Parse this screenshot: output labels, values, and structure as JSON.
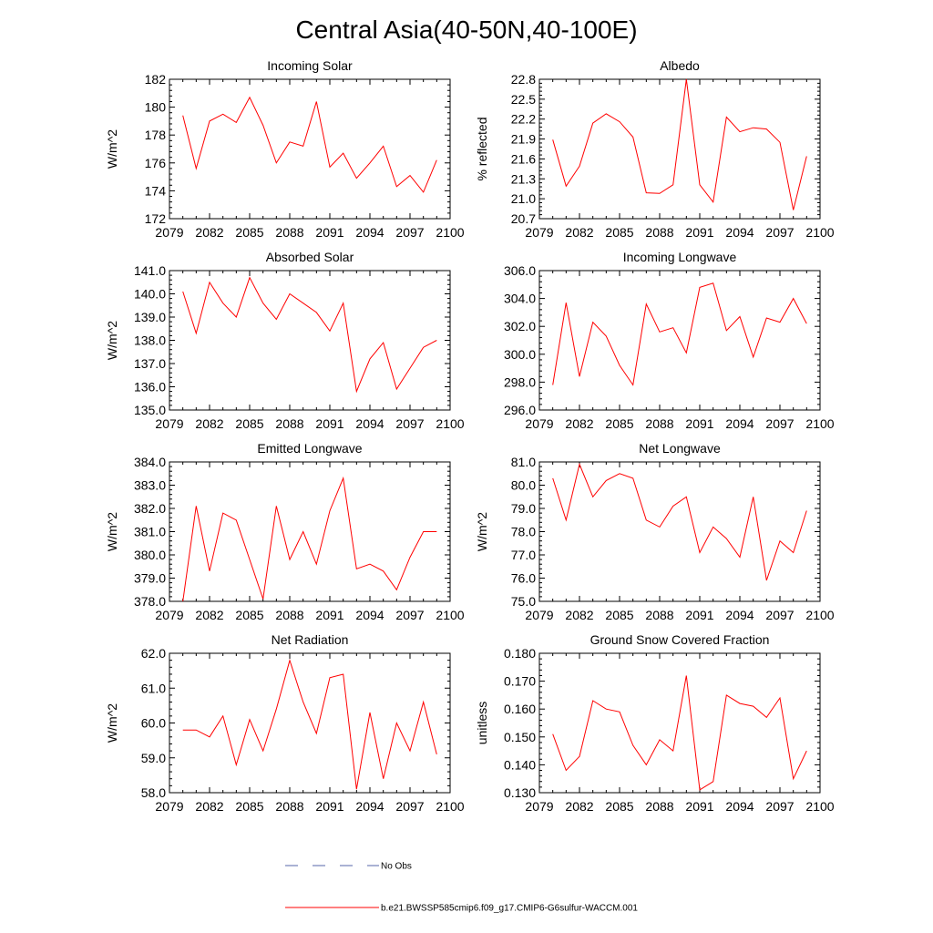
{
  "figure": {
    "title": "Central Asia(40-50N,40-100E)",
    "legend": {
      "no_obs_label": "No Obs",
      "model_label": "b.e21.BWSSP585cmip6.f09_g17.CMIP6-G6sulfur-WACCM.001",
      "no_obs_color": "#5566aa",
      "model_color": "#ff0000"
    }
  },
  "chart_data": [
    {
      "type": "line",
      "title": "Incoming Solar",
      "ylabel": "W/m^2",
      "xlim": [
        2079,
        2100
      ],
      "xticks": [
        2079,
        2082,
        2085,
        2088,
        2091,
        2094,
        2097,
        2100
      ],
      "ylim": [
        172,
        182
      ],
      "yticks": [
        172,
        174,
        176,
        178,
        180,
        182
      ],
      "ydecimals": 0,
      "x": [
        2080,
        2081,
        2082,
        2083,
        2084,
        2085,
        2086,
        2087,
        2088,
        2089,
        2090,
        2091,
        2092,
        2093,
        2094,
        2095,
        2096,
        2097,
        2098,
        2099
      ],
      "series": [
        {
          "color": "#ff0000",
          "values": [
            179.4,
            175.6,
            179.0,
            179.5,
            178.9,
            180.7,
            178.7,
            176.0,
            177.5,
            177.2,
            180.4,
            175.7,
            176.7,
            174.9,
            176.0,
            177.2,
            174.3,
            175.1,
            173.9,
            176.2
          ]
        }
      ]
    },
    {
      "type": "line",
      "title": "Albedo",
      "ylabel": "% reflected",
      "xlim": [
        2079,
        2100
      ],
      "xticks": [
        2079,
        2082,
        2085,
        2088,
        2091,
        2094,
        2097,
        2100
      ],
      "ylim": [
        20.7,
        22.8
      ],
      "yticks": [
        20.7,
        21.0,
        21.3,
        21.6,
        21.9,
        22.2,
        22.5,
        22.8
      ],
      "ydecimals": 1,
      "x": [
        2080,
        2081,
        2082,
        2083,
        2084,
        2085,
        2086,
        2087,
        2088,
        2089,
        2090,
        2091,
        2092,
        2093,
        2094,
        2095,
        2096,
        2097,
        2098,
        2099
      ],
      "series": [
        {
          "color": "#ff0000",
          "values": [
            21.89,
            21.19,
            21.49,
            22.14,
            22.28,
            22.16,
            21.93,
            21.09,
            21.08,
            21.21,
            22.8,
            21.21,
            20.95,
            22.23,
            22.01,
            22.07,
            22.05,
            21.85,
            20.83,
            21.64
          ]
        }
      ]
    },
    {
      "type": "line",
      "title": "Absorbed Solar",
      "ylabel": "W/m^2",
      "xlim": [
        2079,
        2100
      ],
      "xticks": [
        2079,
        2082,
        2085,
        2088,
        2091,
        2094,
        2097,
        2100
      ],
      "ylim": [
        135,
        141
      ],
      "yticks": [
        135,
        136,
        137,
        138,
        139,
        140,
        141
      ],
      "ydecimals": 1,
      "x": [
        2080,
        2081,
        2082,
        2083,
        2084,
        2085,
        2086,
        2087,
        2088,
        2089,
        2090,
        2091,
        2092,
        2093,
        2094,
        2095,
        2096,
        2097,
        2098,
        2099
      ],
      "series": [
        {
          "color": "#ff0000",
          "values": [
            140.1,
            138.3,
            140.5,
            139.6,
            139.0,
            140.7,
            139.6,
            138.9,
            140.0,
            139.6,
            139.2,
            138.4,
            139.6,
            135.8,
            137.2,
            137.9,
            135.9,
            136.8,
            137.7,
            138.0
          ]
        }
      ]
    },
    {
      "type": "line",
      "title": "Incoming Longwave",
      "ylabel": "",
      "xlim": [
        2079,
        2100
      ],
      "xticks": [
        2079,
        2082,
        2085,
        2088,
        2091,
        2094,
        2097,
        2100
      ],
      "ylim": [
        296,
        306
      ],
      "yticks": [
        296,
        298,
        300,
        302,
        304,
        306
      ],
      "ydecimals": 1,
      "x": [
        2080,
        2081,
        2082,
        2083,
        2084,
        2085,
        2086,
        2087,
        2088,
        2089,
        2090,
        2091,
        2092,
        2093,
        2094,
        2095,
        2096,
        2097,
        2098,
        2099
      ],
      "series": [
        {
          "color": "#ff0000",
          "values": [
            297.8,
            303.7,
            298.4,
            302.3,
            301.3,
            299.2,
            297.8,
            303.6,
            301.6,
            301.9,
            300.1,
            304.8,
            305.1,
            301.7,
            302.7,
            299.8,
            302.6,
            302.3,
            304.0,
            302.2
          ]
        }
      ]
    },
    {
      "type": "line",
      "title": "Emitted Longwave",
      "ylabel": "W/m^2",
      "xlim": [
        2079,
        2100
      ],
      "xticks": [
        2079,
        2082,
        2085,
        2088,
        2091,
        2094,
        2097,
        2100
      ],
      "ylim": [
        378,
        384
      ],
      "yticks": [
        378,
        379,
        380,
        381,
        382,
        383,
        384
      ],
      "ydecimals": 1,
      "x": [
        2080,
        2081,
        2082,
        2083,
        2084,
        2085,
        2086,
        2087,
        2088,
        2089,
        2090,
        2091,
        2092,
        2093,
        2094,
        2095,
        2096,
        2097,
        2098,
        2099
      ],
      "series": [
        {
          "color": "#ff0000",
          "values": [
            378.0,
            382.1,
            379.3,
            381.8,
            381.5,
            379.8,
            378.1,
            382.1,
            379.8,
            381.0,
            379.6,
            381.9,
            383.3,
            379.4,
            379.6,
            379.3,
            378.5,
            379.9,
            381.0,
            381.0
          ]
        }
      ]
    },
    {
      "type": "line",
      "title": "Net Longwave",
      "ylabel": "W/m^2",
      "xlim": [
        2079,
        2100
      ],
      "xticks": [
        2079,
        2082,
        2085,
        2088,
        2091,
        2094,
        2097,
        2100
      ],
      "ylim": [
        75,
        81
      ],
      "yticks": [
        75,
        76,
        77,
        78,
        79,
        80,
        81
      ],
      "ydecimals": 1,
      "x": [
        2080,
        2081,
        2082,
        2083,
        2084,
        2085,
        2086,
        2087,
        2088,
        2089,
        2090,
        2091,
        2092,
        2093,
        2094,
        2095,
        2096,
        2097,
        2098,
        2099
      ],
      "series": [
        {
          "color": "#ff0000",
          "values": [
            80.3,
            78.5,
            80.9,
            79.5,
            80.2,
            80.5,
            80.3,
            78.5,
            78.2,
            79.1,
            79.5,
            77.1,
            78.2,
            77.7,
            76.9,
            79.5,
            75.9,
            77.6,
            77.1,
            78.9
          ]
        }
      ]
    },
    {
      "type": "line",
      "title": "Net Radiation",
      "ylabel": "W/m^2",
      "xlim": [
        2079,
        2100
      ],
      "xticks": [
        2079,
        2082,
        2085,
        2088,
        2091,
        2094,
        2097,
        2100
      ],
      "ylim": [
        58,
        62
      ],
      "yticks": [
        58,
        59,
        60,
        61,
        62
      ],
      "ydecimals": 1,
      "x": [
        2080,
        2081,
        2082,
        2083,
        2084,
        2085,
        2086,
        2087,
        2088,
        2089,
        2090,
        2091,
        2092,
        2093,
        2094,
        2095,
        2096,
        2097,
        2098,
        2099
      ],
      "series": [
        {
          "color": "#ff0000",
          "values": [
            59.8,
            59.8,
            59.6,
            60.2,
            58.8,
            60.1,
            59.2,
            60.4,
            61.8,
            60.6,
            59.7,
            61.3,
            61.4,
            58.1,
            60.3,
            58.4,
            60.0,
            59.2,
            60.6,
            59.1
          ]
        }
      ]
    },
    {
      "type": "line",
      "title": "Ground Snow Covered Fraction",
      "ylabel": "unitless",
      "xlim": [
        2079,
        2100
      ],
      "xticks": [
        2079,
        2082,
        2085,
        2088,
        2091,
        2094,
        2097,
        2100
      ],
      "ylim": [
        0.13,
        0.18
      ],
      "yticks": [
        0.13,
        0.14,
        0.15,
        0.16,
        0.17,
        0.18
      ],
      "ydecimals": 3,
      "x": [
        2080,
        2081,
        2082,
        2083,
        2084,
        2085,
        2086,
        2087,
        2088,
        2089,
        2090,
        2091,
        2092,
        2093,
        2094,
        2095,
        2096,
        2097,
        2098,
        2099
      ],
      "series": [
        {
          "color": "#ff0000",
          "values": [
            0.151,
            0.138,
            0.143,
            0.163,
            0.16,
            0.159,
            0.147,
            0.14,
            0.149,
            0.145,
            0.172,
            0.131,
            0.134,
            0.165,
            0.162,
            0.161,
            0.157,
            0.164,
            0.135,
            0.145
          ]
        }
      ]
    }
  ]
}
